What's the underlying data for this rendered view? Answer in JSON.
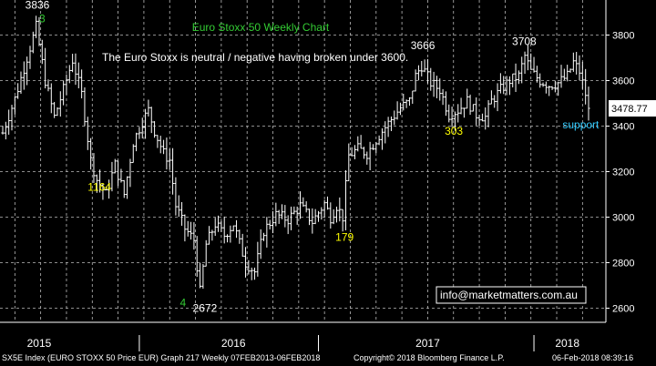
{
  "chart_data": {
    "type": "ohlc",
    "title": "Euro Stoxx 50 Weekly Chart",
    "annotation": "The Euro Stoxx is neutral / negative having broken under 3600.",
    "email": "info@marketmatters.com.au",
    "ylim": [
      2550,
      3920
    ],
    "y_ticks": [
      2600,
      2800,
      3000,
      3200,
      3400,
      3600,
      3800
    ],
    "x_labels": [
      "2015",
      "2016",
      "2017",
      "2018"
    ],
    "last_price_label": "3478.77",
    "series_keypoints": [
      {
        "t": 0,
        "v": 3370
      },
      {
        "t": 4,
        "v": 3520
      },
      {
        "t": 8,
        "v": 3700
      },
      {
        "t": 11,
        "v": 3836
      },
      {
        "t": 14,
        "v": 3600
      },
      {
        "t": 17,
        "v": 3440
      },
      {
        "t": 20,
        "v": 3560
      },
      {
        "t": 23,
        "v": 3690
      },
      {
        "t": 26,
        "v": 3540
      },
      {
        "t": 29,
        "v": 3250
      },
      {
        "t": 31,
        "v": 3164
      },
      {
        "t": 34,
        "v": 3100
      },
      {
        "t": 37,
        "v": 3230
      },
      {
        "t": 40,
        "v": 3100
      },
      {
        "t": 43,
        "v": 3330
      },
      {
        "t": 46,
        "v": 3420
      },
      {
        "t": 48,
        "v": 3470
      },
      {
        "t": 50,
        "v": 3380
      },
      {
        "t": 53,
        "v": 3280
      },
      {
        "t": 55,
        "v": 3250
      },
      {
        "t": 57,
        "v": 3050
      },
      {
        "t": 60,
        "v": 2950
      },
      {
        "t": 63,
        "v": 2900
      },
      {
        "t": 65,
        "v": 2672
      },
      {
        "t": 67,
        "v": 2880
      },
      {
        "t": 70,
        "v": 2970
      },
      {
        "t": 73,
        "v": 2920
      },
      {
        "t": 76,
        "v": 2970
      },
      {
        "t": 80,
        "v": 2800
      },
      {
        "t": 83,
        "v": 2760
      },
      {
        "t": 86,
        "v": 2940
      },
      {
        "t": 90,
        "v": 3010
      },
      {
        "t": 94,
        "v": 2990
      },
      {
        "t": 98,
        "v": 3050
      },
      {
        "t": 102,
        "v": 2980
      },
      {
        "t": 106,
        "v": 3060
      },
      {
        "t": 108,
        "v": 3000
      },
      {
        "t": 110,
        "v": 3050
      },
      {
        "t": 112,
        "v": 3000
      },
      {
        "t": 114,
        "v": 3270
      },
      {
        "t": 117,
        "v": 3300
      },
      {
        "t": 120,
        "v": 3280
      },
      {
        "t": 124,
        "v": 3360
      },
      {
        "t": 128,
        "v": 3430
      },
      {
        "t": 131,
        "v": 3480
      },
      {
        "t": 134,
        "v": 3510
      },
      {
        "t": 136,
        "v": 3620
      },
      {
        "t": 138,
        "v": 3666
      },
      {
        "t": 141,
        "v": 3590
      },
      {
        "t": 144,
        "v": 3560
      },
      {
        "t": 147,
        "v": 3450
      },
      {
        "t": 150,
        "v": 3470
      },
      {
        "t": 153,
        "v": 3510
      },
      {
        "t": 156,
        "v": 3450
      },
      {
        "t": 159,
        "v": 3440
      },
      {
        "t": 161,
        "v": 3510
      },
      {
        "t": 164,
        "v": 3560
      },
      {
        "t": 167,
        "v": 3600
      },
      {
        "t": 170,
        "v": 3620
      },
      {
        "t": 172,
        "v": 3708
      },
      {
        "t": 174,
        "v": 3640
      },
      {
        "t": 177,
        "v": 3600
      },
      {
        "t": 180,
        "v": 3580
      },
      {
        "t": 183,
        "v": 3590
      },
      {
        "t": 186,
        "v": 3620
      },
      {
        "t": 188,
        "v": 3680
      },
      {
        "t": 190,
        "v": 3640
      },
      {
        "t": 192,
        "v": 3540
      },
      {
        "t": 193,
        "v": 3478
      }
    ],
    "level_labels": [
      {
        "text": "3836",
        "t": 11,
        "v": 3836,
        "color": "#ffffff"
      },
      {
        "text": "3",
        "t": 12,
        "v": 3836,
        "color": "#33cc33"
      },
      {
        "text": "1164",
        "t": 31,
        "v": 3164,
        "color": "#ffff00"
      },
      {
        "text": "4",
        "t": 62,
        "v": 2672,
        "color": "#33cc33"
      },
      {
        "text": "2672",
        "t": 65,
        "v": 2672,
        "color": "#ffffff"
      },
      {
        "text": "179",
        "t": 112,
        "v": 3000,
        "color": "#ffff00"
      },
      {
        "text": "3666",
        "t": 138,
        "v": 3666,
        "color": "#ffffff"
      },
      {
        "text": "303",
        "t": 148,
        "v": 3450,
        "color": "#ffff00"
      },
      {
        "text": "3708",
        "t": 172,
        "v": 3708,
        "color": "#ffffff"
      },
      {
        "text": "support",
        "t": 182,
        "v": 3478,
        "color": "#33ccff"
      }
    ]
  },
  "footer": {
    "left": "SX5E Index (EURO STOXX 50 Price EUR) Graph 217  Weekly 07FEB2013-06FEB2018",
    "center": "Copyright© 2018 Bloomberg Finance L.P.",
    "right": "06-Feb-2018 08:39:16"
  }
}
